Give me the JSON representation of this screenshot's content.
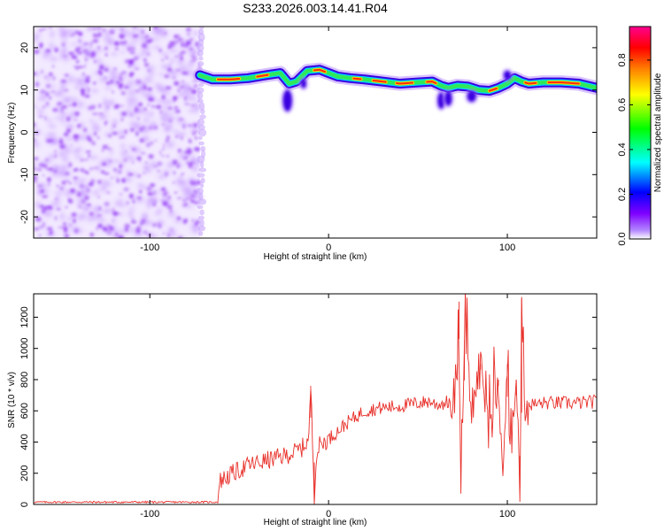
{
  "title": "S233.2026.003.14.41.R04",
  "chart_data": [
    {
      "type": "heatmap",
      "xlabel": "Height of straight line (km)",
      "ylabel": "Frequency (Hz)",
      "xlim": [
        -165,
        150
      ],
      "ylim": [
        -25,
        25
      ],
      "xticks": [
        -100,
        0,
        100
      ],
      "xtick_labels": [
        "-100",
        "0",
        "100"
      ],
      "yticks": [
        -20,
        -10,
        0,
        10,
        20
      ],
      "ytick_labels": [
        "-20",
        "-10",
        "0",
        "10",
        "20"
      ],
      "noise_region": [
        -165,
        -72
      ],
      "ridge": {
        "x": [
          -72,
          -65,
          -55,
          -45,
          -35,
          -27,
          -22,
          -18,
          -12,
          -5,
          0,
          5,
          12,
          20,
          30,
          40,
          50,
          58,
          63,
          67,
          72,
          78,
          84,
          90,
          95,
          100,
          104,
          108,
          112,
          120,
          130,
          140,
          150
        ],
        "y": [
          13.5,
          12.5,
          12.5,
          12.8,
          13.5,
          14.0,
          11.5,
          12.0,
          14.5,
          14.8,
          14.0,
          13.2,
          12.8,
          12.5,
          12.0,
          11.5,
          11.8,
          12.0,
          11.0,
          10.5,
          11.0,
          10.8,
          10.0,
          9.8,
          10.5,
          11.5,
          12.8,
          12.0,
          11.5,
          11.8,
          11.8,
          11.5,
          10.5
        ]
      },
      "colorbar": {
        "label": "Normalized spectral amplitude",
        "range": [
          0.0,
          0.95
        ],
        "ticks": [
          0.0,
          0.2,
          0.4,
          0.6,
          0.8
        ],
        "tick_labels": [
          "0.0",
          "0.2",
          "0.4",
          "0.6",
          "0.8"
        ],
        "colors": [
          "#ffffff",
          "#7f00ff",
          "#0000ff",
          "#00ffff",
          "#00ff00",
          "#ffff00",
          "#ff7f00",
          "#ff0000",
          "#ff00aa"
        ]
      }
    },
    {
      "type": "line",
      "xlabel": "Height of straight line (km)",
      "ylabel": "SNR (10 * v/v)",
      "xlim": [
        -165,
        150
      ],
      "ylim": [
        0,
        1350
      ],
      "xticks": [
        -100,
        0,
        100
      ],
      "xtick_labels": [
        "-100",
        "0",
        "100"
      ],
      "yticks": [
        0,
        200,
        400,
        600,
        800,
        1000,
        1200
      ],
      "ytick_labels": [
        "0",
        "200",
        "400",
        "600",
        "800",
        "1000",
        "1200"
      ],
      "color": "#e8302a",
      "series": [
        {
          "name": "SNR",
          "x": [
            -165,
            -140,
            -110,
            -80,
            -62,
            -61,
            -55,
            -45,
            -35,
            -25,
            -20,
            -15,
            -11,
            -10,
            -8,
            -7,
            -5,
            0,
            10,
            20,
            30,
            40,
            50,
            57,
            60,
            65,
            70,
            72,
            73,
            74,
            76,
            80,
            85,
            90,
            95,
            98,
            100,
            102,
            105,
            107,
            108,
            110,
            115,
            120,
            130,
            140,
            150
          ],
          "y": [
            15,
            15,
            15,
            15,
            15,
            150,
            190,
            250,
            280,
            310,
            330,
            360,
            420,
            760,
            60,
            300,
            380,
            420,
            520,
            600,
            620,
            630,
            650,
            660,
            640,
            650,
            670,
            900,
            1300,
            200,
            1050,
            600,
            900,
            450,
            800,
            200,
            900,
            300,
            800,
            100,
            1320,
            650,
            640,
            650,
            650,
            650,
            660
          ]
        }
      ]
    }
  ]
}
